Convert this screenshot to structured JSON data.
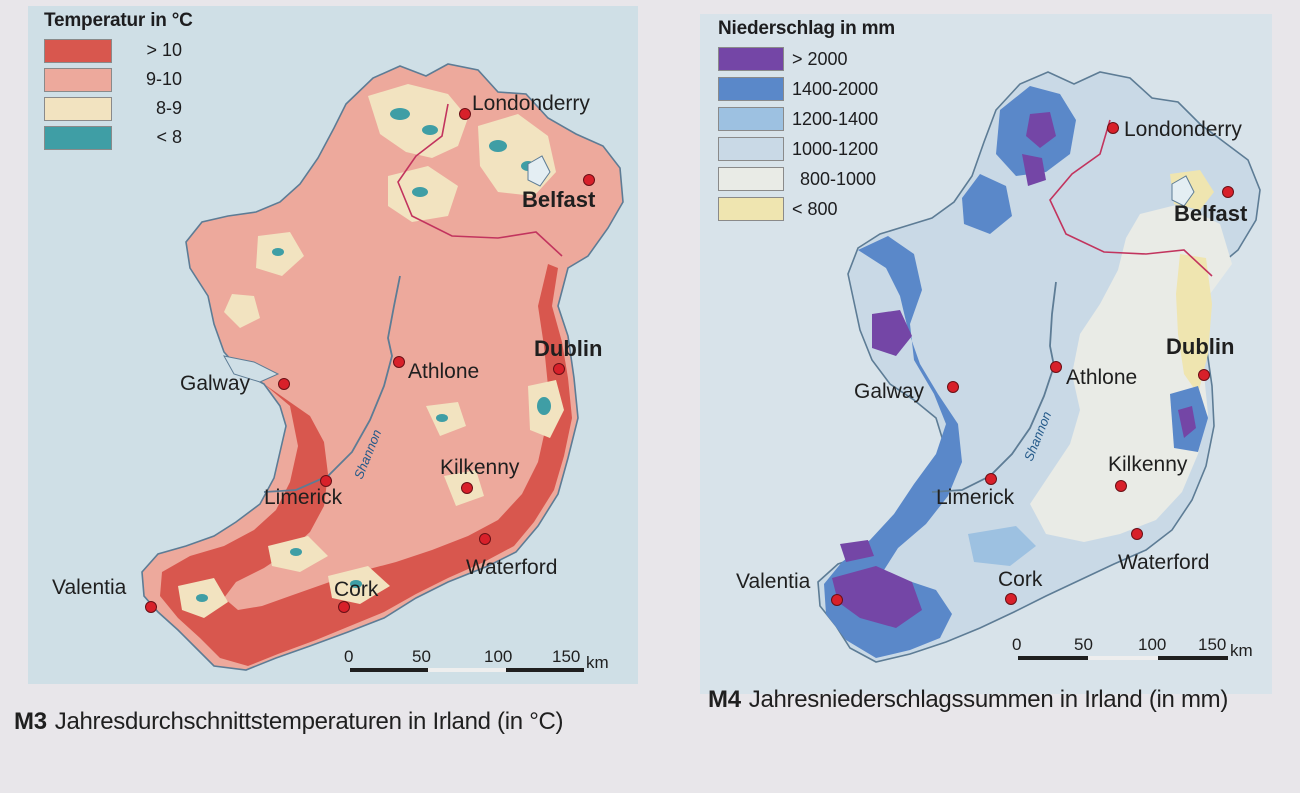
{
  "left_map": {
    "legend_title": "Temperatur in °C",
    "legend": [
      {
        "label": "> 10",
        "color": "#d8574e"
      },
      {
        "label": "9-10",
        "color": "#eda99c"
      },
      {
        "label": "8-9",
        "color": "#f2e3c0"
      },
      {
        "label": "< 8",
        "color": "#3f9ea5"
      }
    ],
    "cities": {
      "londonderry": "Londonderry",
      "belfast": "Belfast",
      "dublin": "Dublin",
      "athlone": "Athlone",
      "galway": "Galway",
      "limerick": "Limerick",
      "kilkenny": "Kilkenny",
      "waterford": "Waterford",
      "cork": "Cork",
      "valentia": "Valentia"
    },
    "river": "Shannon",
    "scale": {
      "ticks": [
        "0",
        "50",
        "100",
        "150"
      ],
      "unit": "km"
    },
    "caption_id": "M3",
    "caption_text": "Jahresdurchschnittstemperaturen in Irland (in °C)"
  },
  "right_map": {
    "legend_title": "Niederschlag in mm",
    "legend": [
      {
        "label": "> 2000",
        "color": "#7446a6"
      },
      {
        "label": "1400-2000",
        "color": "#5a88c9"
      },
      {
        "label": "1200-1400",
        "color": "#9dc1e1"
      },
      {
        "label": "1000-1200",
        "color": "#c9d9e6"
      },
      {
        "label": "800-1000",
        "color": "#e9ebe6"
      },
      {
        "label": "< 800",
        "color": "#efe5b0"
      }
    ],
    "cities": {
      "londonderry": "Londonderry",
      "belfast": "Belfast",
      "dublin": "Dublin",
      "athlone": "Athlone",
      "galway": "Galway",
      "limerick": "Limerick",
      "kilkenny": "Kilkenny",
      "waterford": "Waterford",
      "cork": "Cork",
      "valentia": "Valentia"
    },
    "river": "Shannon",
    "scale": {
      "ticks": [
        "0",
        "50",
        "100",
        "150"
      ],
      "unit": "km"
    },
    "caption_id": "M4",
    "caption_text": "Jahresniederschlagssummen in Irland (in mm)"
  }
}
